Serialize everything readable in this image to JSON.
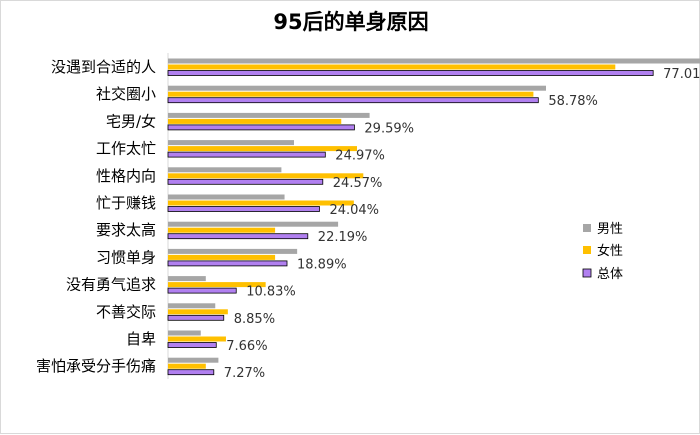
{
  "chart_data": {
    "type": "bar",
    "orientation": "horizontal",
    "title": "95后的单身原因",
    "categories": [
      "没遇到合适的人",
      "社交圈小",
      "宅男/女",
      "工作太忙",
      "性格内向",
      "忙于赚钱",
      "要求太高",
      "习惯单身",
      "没有勇气追求",
      "不善交际",
      "自卑",
      "害怕承受分手伤痛"
    ],
    "series": [
      {
        "name": "男性",
        "values": [
          84.5,
          60.0,
          32.0,
          20.0,
          18.0,
          18.5,
          27.0,
          20.5,
          6.0,
          7.5,
          5.2,
          8.0
        ],
        "color": "#a6a6a6"
      },
      {
        "name": "女性",
        "values": [
          71.0,
          58.0,
          27.5,
          30.0,
          31.0,
          29.5,
          17.0,
          17.0,
          15.5,
          9.5,
          9.2,
          6.0
        ],
        "color": "#ffc000"
      },
      {
        "name": "总体",
        "values": [
          77.01,
          58.78,
          29.59,
          24.97,
          24.57,
          24.04,
          22.19,
          18.89,
          10.83,
          8.85,
          7.66,
          7.27
        ],
        "color": "#b180f0"
      }
    ],
    "data_labels": [
      "77.01%",
      "58.78%",
      "29.59%",
      "24.97%",
      "24.57%",
      "24.04%",
      "22.19%",
      "18.89%",
      "10.83%",
      "8.85%",
      "7.66%",
      "7.27%"
    ],
    "xlim": [
      0,
      90
    ],
    "grid": false,
    "legend_position": "right"
  }
}
